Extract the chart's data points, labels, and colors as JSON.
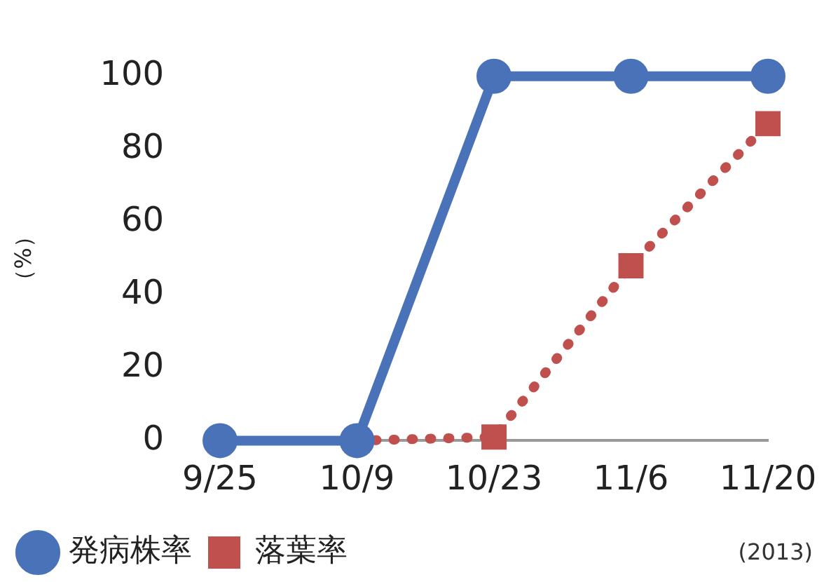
{
  "chart_data": {
    "type": "line",
    "ylabel": "（%）",
    "categories": [
      "9/25",
      "10/9",
      "10/23",
      "11/6",
      "11/20"
    ],
    "series": [
      {
        "name": "発病株率",
        "color": "#4a72b8",
        "values": [
          0,
          0,
          100,
          100,
          100
        ],
        "marker": "circle",
        "line_style": "solid"
      },
      {
        "name": "落葉率",
        "color": "#c0504d",
        "values": [
          null,
          0,
          1,
          48,
          87
        ],
        "marker": "square",
        "line_style": "dotted"
      }
    ],
    "ylim": [
      0,
      100
    ],
    "yticks": [
      0,
      20,
      40,
      60,
      80,
      100
    ],
    "grid": false,
    "legend": "bottom",
    "annotations": [
      "(2013)"
    ]
  }
}
